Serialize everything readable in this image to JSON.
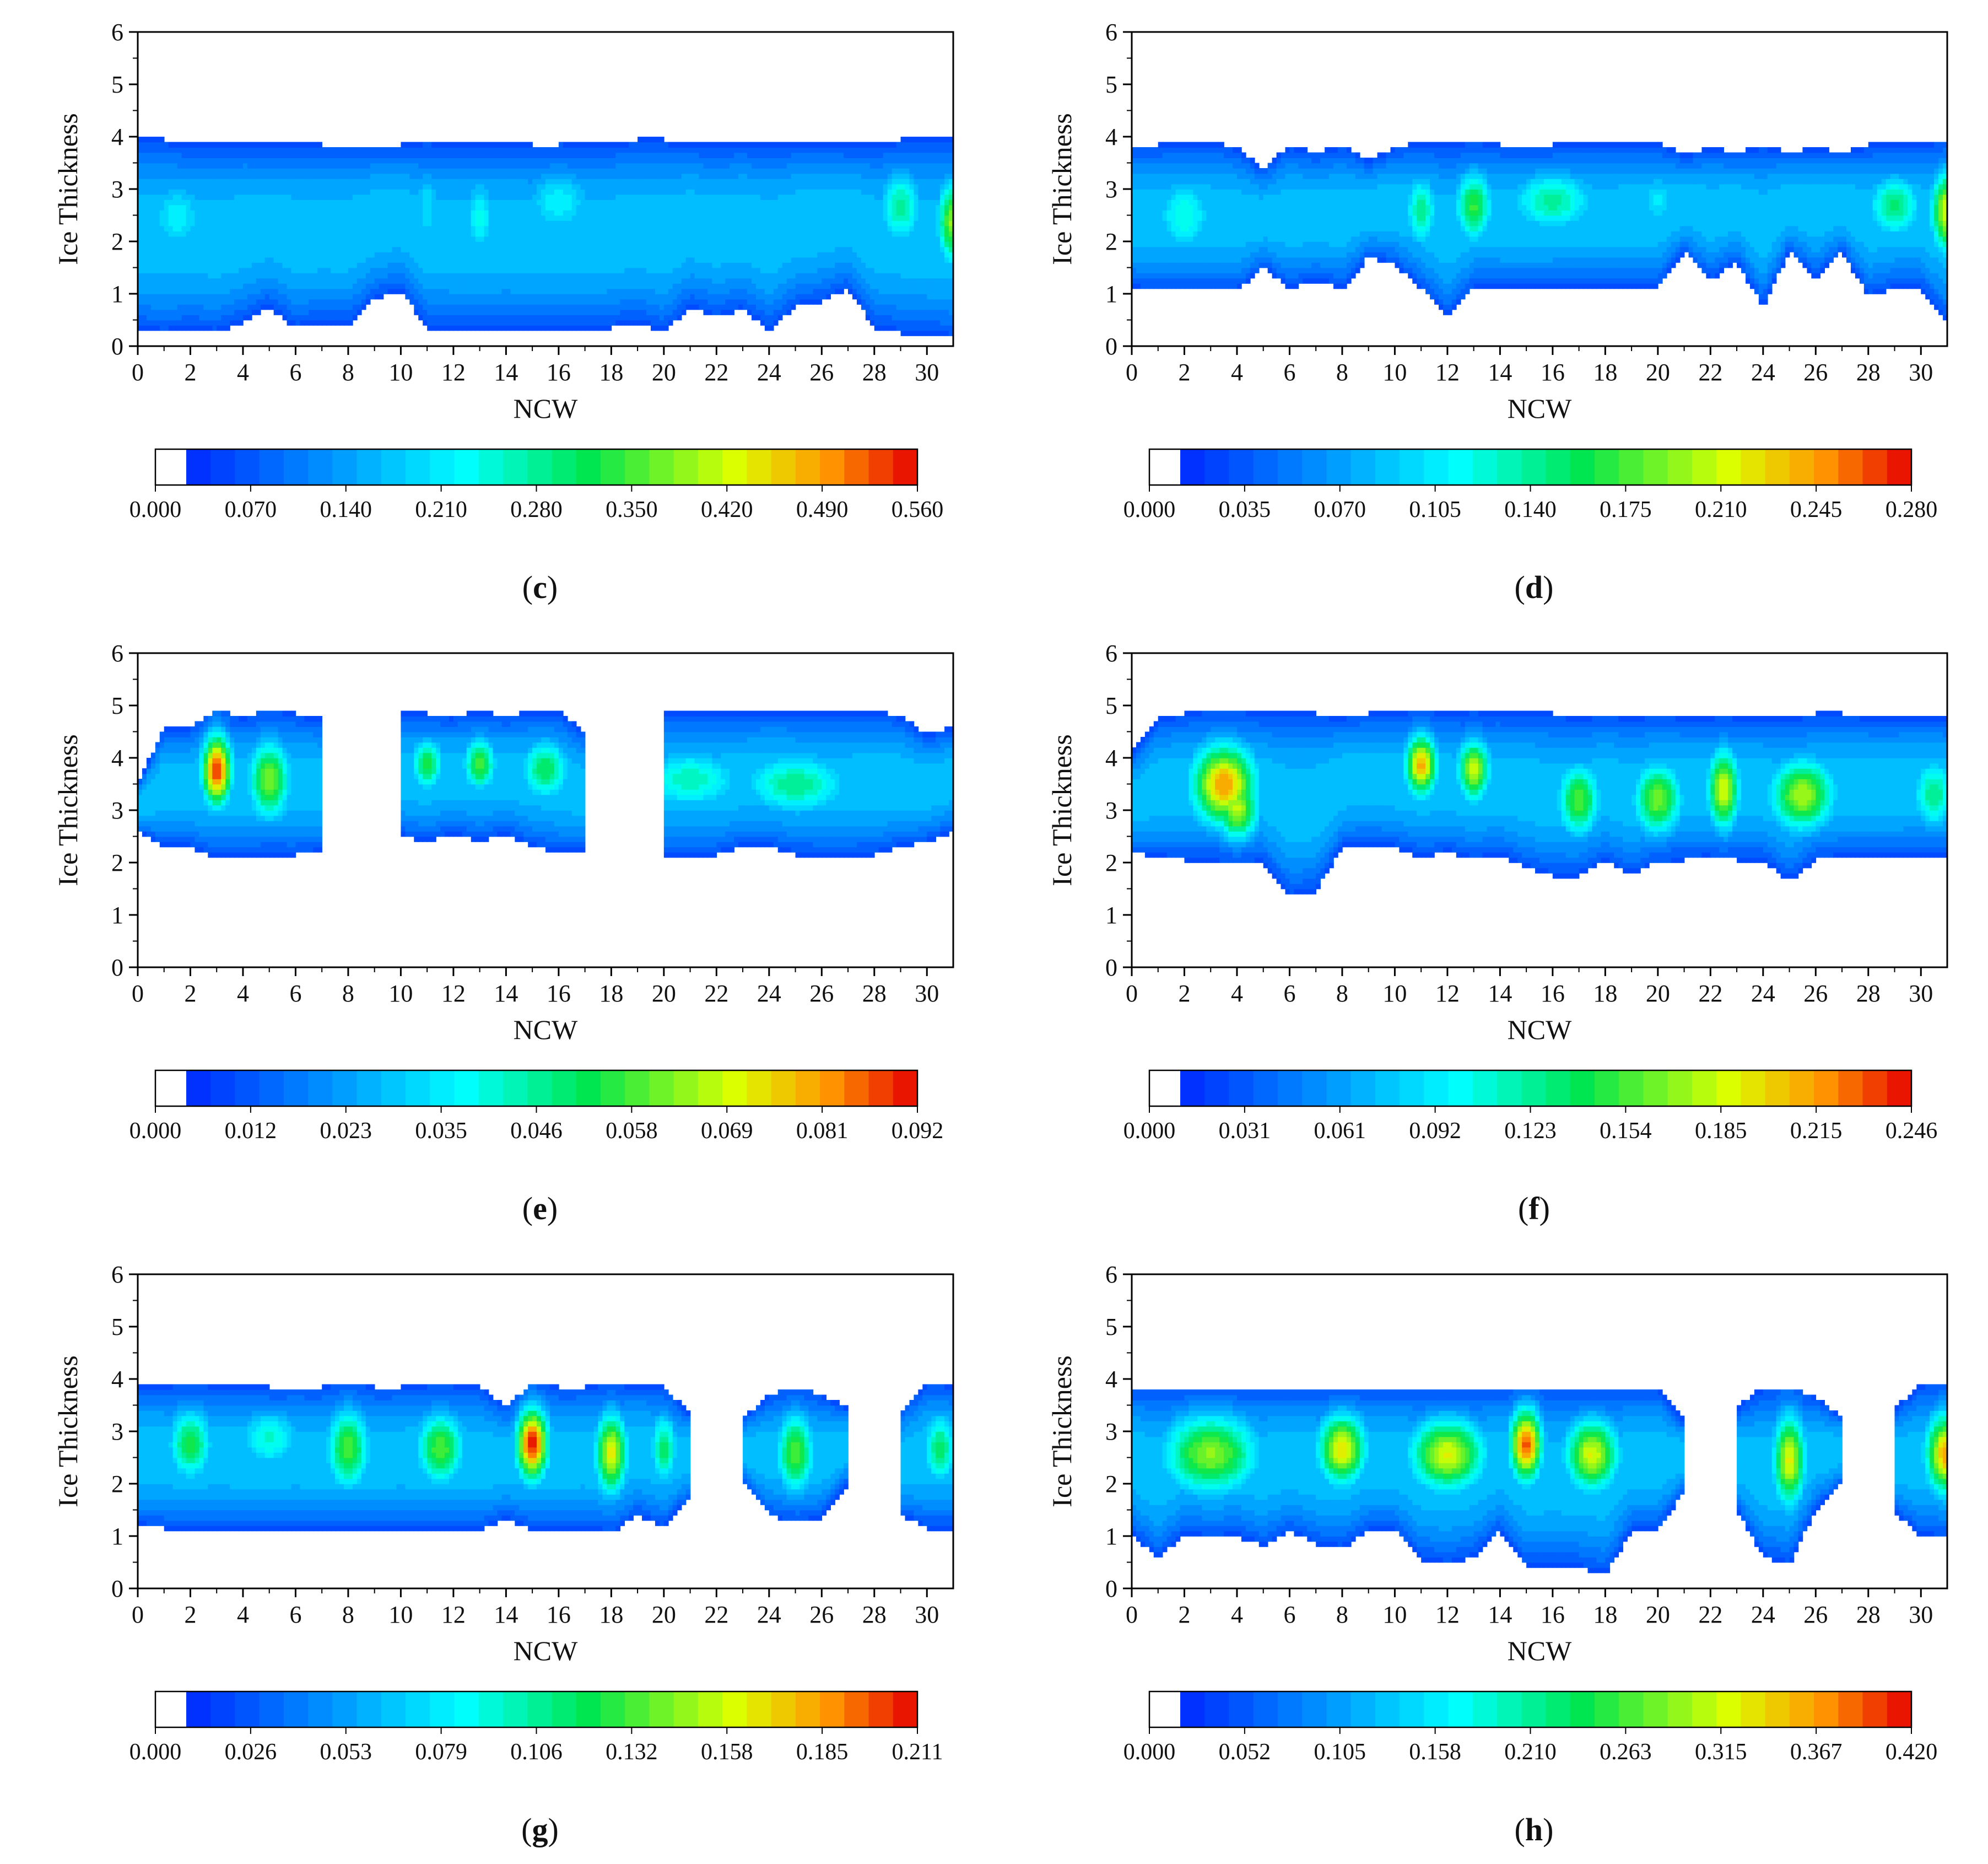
{
  "figure": {
    "panel_letters": [
      "c",
      "d",
      "e",
      "f",
      "g",
      "h"
    ]
  },
  "chart_data": [
    {
      "type": "heatmap",
      "panel": "c",
      "title": "",
      "xlabel": "NCW",
      "ylabel": "Ice Thickness",
      "xlim": [
        0,
        31
      ],
      "ylim": [
        0,
        6
      ],
      "xticks": [
        "0",
        "2",
        "4",
        "6",
        "8",
        "10",
        "12",
        "14",
        "16",
        "18",
        "20",
        "22",
        "24",
        "26",
        "28",
        "30"
      ],
      "yticks": [
        "0",
        "1",
        "2",
        "3",
        "4",
        "5",
        "6"
      ],
      "colorbar_labels": [
        "0.000",
        "0.070",
        "0.140",
        "0.210",
        "0.280",
        "0.350",
        "0.420",
        "0.490",
        "0.560"
      ],
      "vmax": 0.56,
      "band": {
        "lower": [
          0.3,
          0.25,
          0.3,
          0.25,
          0.45,
          0.75,
          0.35,
          0.45,
          0.4,
          0.9,
          1.05,
          0.35,
          0.35,
          0.3,
          0.35,
          0.3,
          0.3,
          0.3,
          0.35,
          0.45,
          0.25,
          0.75,
          0.55,
          0.7,
          0.3,
          0.75,
          0.85,
          1.1,
          0.35,
          0.25,
          0.2,
          0.15
        ],
        "upper": [
          3.95,
          3.95,
          3.9,
          3.9,
          3.9,
          3.85,
          3.9,
          3.85,
          3.85,
          3.85,
          3.85,
          3.9,
          3.85,
          3.9,
          3.9,
          3.85,
          3.85,
          3.9,
          3.9,
          3.95,
          3.95,
          3.9,
          3.85,
          3.9,
          3.85,
          3.9,
          3.9,
          3.85,
          3.9,
          3.95,
          3.95,
          3.95
        ]
      },
      "hotspots": [
        {
          "x": 1.5,
          "y": 2.5,
          "amp": 0.17,
          "sx": 1.2,
          "sy": 0.8
        },
        {
          "x": 6,
          "y": 2.5,
          "amp": 0.1,
          "sx": 0.5,
          "sy": 0.8
        },
        {
          "x": 11,
          "y": 2.7,
          "amp": 0.16,
          "sx": 0.5,
          "sy": 0.8
        },
        {
          "x": 13,
          "y": 2.5,
          "amp": 0.19,
          "sx": 0.6,
          "sy": 0.8
        },
        {
          "x": 16,
          "y": 2.8,
          "amp": 0.18,
          "sx": 1.4,
          "sy": 0.7
        },
        {
          "x": 20,
          "y": 2.6,
          "amp": 0.1,
          "sx": 0.8,
          "sy": 0.8
        },
        {
          "x": 22,
          "y": 2.8,
          "amp": 0.08,
          "sx": 0.5,
          "sy": 0.5
        },
        {
          "x": 24,
          "y": 2.6,
          "amp": 0.1,
          "sx": 0.6,
          "sy": 0.8
        },
        {
          "x": 26,
          "y": 2.8,
          "amp": 0.09,
          "sx": 0.5,
          "sy": 0.6
        },
        {
          "x": 29,
          "y": 2.7,
          "amp": 0.25,
          "sx": 0.8,
          "sy": 0.7
        },
        {
          "x": 31,
          "y": 2.4,
          "amp": 0.35,
          "sx": 0.6,
          "sy": 0.8
        }
      ]
    },
    {
      "type": "heatmap",
      "panel": "d",
      "title": "",
      "xlabel": "NCW",
      "ylabel": "Ice Thickness",
      "xlim": [
        0,
        31
      ],
      "ylim": [
        0,
        6
      ],
      "xticks": [
        "0",
        "2",
        "4",
        "6",
        "8",
        "10",
        "12",
        "14",
        "16",
        "18",
        "20",
        "22",
        "24",
        "26",
        "28",
        "30"
      ],
      "yticks": [
        "0",
        "1",
        "2",
        "3",
        "4",
        "5",
        "6"
      ],
      "colorbar_labels": [
        "0.000",
        "0.035",
        "0.070",
        "0.105",
        "0.140",
        "0.175",
        "0.210",
        "0.245",
        "0.280"
      ],
      "vmax": 0.28,
      "band": {
        "lower": [
          1.1,
          1.05,
          1.05,
          1.05,
          1.05,
          1.5,
          1.1,
          1.25,
          1.1,
          1.7,
          1.55,
          1.1,
          0.55,
          1.1,
          1.1,
          1.1,
          1.1,
          1.1,
          1.1,
          1.1,
          1.1,
          1.8,
          1.25,
          1.6,
          0.75,
          1.8,
          1.3,
          1.8,
          0.95,
          1.1,
          1.1,
          0.45
        ],
        "upper": [
          3.85,
          3.85,
          3.9,
          3.9,
          3.8,
          3.4,
          3.85,
          3.7,
          3.85,
          3.55,
          3.8,
          3.9,
          3.85,
          3.9,
          3.85,
          3.85,
          3.85,
          3.9,
          3.85,
          3.9,
          3.9,
          3.65,
          3.8,
          3.7,
          3.85,
          3.7,
          3.8,
          3.7,
          3.85,
          3.9,
          3.9,
          3.9
        ]
      },
      "hotspots": [
        {
          "x": 2,
          "y": 2.5,
          "amp": 0.1,
          "sx": 1.1,
          "sy": 0.8
        },
        {
          "x": 6,
          "y": 2.4,
          "amp": 0.04,
          "sx": 0.4,
          "sy": 0.8
        },
        {
          "x": 8,
          "y": 2.4,
          "amp": 0.04,
          "sx": 0.4,
          "sy": 0.8
        },
        {
          "x": 11,
          "y": 2.6,
          "amp": 0.12,
          "sx": 0.6,
          "sy": 0.7
        },
        {
          "x": 13,
          "y": 2.7,
          "amp": 0.15,
          "sx": 0.7,
          "sy": 0.7
        },
        {
          "x": 16,
          "y": 2.8,
          "amp": 0.12,
          "sx": 1.6,
          "sy": 0.6
        },
        {
          "x": 20,
          "y": 2.8,
          "amp": 0.08,
          "sx": 0.7,
          "sy": 0.6
        },
        {
          "x": 22,
          "y": 2.8,
          "amp": 0.03,
          "sx": 0.3,
          "sy": 0.6
        },
        {
          "x": 24,
          "y": 2.4,
          "amp": 0.03,
          "sx": 0.3,
          "sy": 0.8
        },
        {
          "x": 26,
          "y": 2.8,
          "amp": 0.04,
          "sx": 0.4,
          "sy": 0.5
        },
        {
          "x": 29,
          "y": 2.7,
          "amp": 0.13,
          "sx": 1.0,
          "sy": 0.6
        },
        {
          "x": 31,
          "y": 2.6,
          "amp": 0.2,
          "sx": 0.6,
          "sy": 0.8
        }
      ]
    },
    {
      "type": "heatmap",
      "panel": "e",
      "title": "",
      "xlabel": "NCW",
      "ylabel": "Ice Thickness",
      "xlim": [
        0,
        31
      ],
      "ylim": [
        0,
        6
      ],
      "xticks": [
        "0",
        "2",
        "4",
        "6",
        "8",
        "10",
        "12",
        "14",
        "16",
        "18",
        "20",
        "22",
        "24",
        "26",
        "28",
        "30"
      ],
      "yticks": [
        "0",
        "1",
        "2",
        "3",
        "4",
        "5",
        "6"
      ],
      "colorbar_labels": [
        "0.000",
        "0.012",
        "0.023",
        "0.035",
        "0.046",
        "0.058",
        "0.069",
        "0.081",
        "0.092"
      ],
      "vmax": 0.092,
      "band": {
        "lower": [
          2.6,
          2.3,
          2.3,
          2.1,
          2.15,
          2.15,
          2.15,
          2.2,
          null,
          null,
          2.5,
          2.4,
          2.55,
          2.4,
          2.55,
          2.3,
          2.2,
          2.2,
          null,
          null,
          2.15,
          2.15,
          2.15,
          2.3,
          2.3,
          2.15,
          2.15,
          2.15,
          2.15,
          2.3,
          2.4,
          2.6
        ],
        "upper": [
          3.5,
          4.6,
          4.6,
          4.9,
          4.8,
          4.9,
          4.85,
          4.75,
          null,
          null,
          4.85,
          4.85,
          4.8,
          4.9,
          4.8,
          4.9,
          4.9,
          4.5,
          null,
          null,
          4.85,
          4.85,
          4.85,
          4.85,
          4.9,
          4.9,
          4.85,
          4.85,
          4.9,
          4.8,
          4.45,
          4.6
        ]
      },
      "hotspots": [
        {
          "x": 3,
          "y": 3.8,
          "amp": 0.085,
          "sx": 0.55,
          "sy": 0.7
        },
        {
          "x": 5,
          "y": 3.6,
          "amp": 0.055,
          "sx": 0.8,
          "sy": 0.8
        },
        {
          "x": 11,
          "y": 3.9,
          "amp": 0.048,
          "sx": 0.6,
          "sy": 0.5
        },
        {
          "x": 13,
          "y": 3.9,
          "amp": 0.052,
          "sx": 0.6,
          "sy": 0.5
        },
        {
          "x": 15.5,
          "y": 3.8,
          "amp": 0.045,
          "sx": 0.9,
          "sy": 0.6
        },
        {
          "x": 21,
          "y": 3.6,
          "amp": 0.036,
          "sx": 2.0,
          "sy": 0.6
        },
        {
          "x": 25,
          "y": 3.5,
          "amp": 0.04,
          "sx": 2.0,
          "sy": 0.6
        }
      ]
    },
    {
      "type": "heatmap",
      "panel": "f",
      "title": "",
      "xlabel": "NCW",
      "ylabel": "Ice Thickness",
      "xlim": [
        0,
        31
      ],
      "ylim": [
        0,
        6
      ],
      "xticks": [
        "0",
        "2",
        "4",
        "6",
        "8",
        "10",
        "12",
        "14",
        "16",
        "18",
        "20",
        "22",
        "24",
        "26",
        "28",
        "30"
      ],
      "yticks": [
        "0",
        "1",
        "2",
        "3",
        "4",
        "5",
        "6"
      ],
      "colorbar_labels": [
        "0.000",
        "0.031",
        "0.061",
        "0.092",
        "0.123",
        "0.154",
        "0.185",
        "0.215",
        "0.246"
      ],
      "vmax": 0.246,
      "band": {
        "lower": [
          2.2,
          2.1,
          2.05,
          2.05,
          2.05,
          2.0,
          1.35,
          1.45,
          2.3,
          2.35,
          2.3,
          2.1,
          2.2,
          2.05,
          2.15,
          1.9,
          1.75,
          1.75,
          2.05,
          1.75,
          2.05,
          2.05,
          2.1,
          2.05,
          2.05,
          1.65,
          2.05,
          2.1,
          2.1,
          2.1,
          2.15,
          2.1
        ],
        "upper": [
          4.1,
          4.75,
          4.85,
          4.9,
          4.9,
          4.85,
          4.85,
          4.85,
          4.8,
          4.85,
          4.85,
          4.9,
          4.85,
          4.85,
          4.85,
          4.85,
          4.85,
          4.8,
          4.85,
          4.8,
          4.85,
          4.8,
          4.8,
          4.8,
          4.8,
          4.8,
          4.85,
          4.85,
          4.8,
          4.8,
          4.8,
          4.8
        ]
      },
      "hotspots": [
        {
          "x": 3.5,
          "y": 3.5,
          "amp": 0.2,
          "sx": 1.2,
          "sy": 0.8
        },
        {
          "x": 4,
          "y": 3.0,
          "amp": 0.17,
          "sx": 0.8,
          "sy": 0.6
        },
        {
          "x": 11,
          "y": 3.9,
          "amp": 0.2,
          "sx": 0.6,
          "sy": 0.6
        },
        {
          "x": 13,
          "y": 3.8,
          "amp": 0.17,
          "sx": 0.6,
          "sy": 0.6
        },
        {
          "x": 17,
          "y": 3.2,
          "amp": 0.14,
          "sx": 0.8,
          "sy": 0.7
        },
        {
          "x": 20,
          "y": 3.2,
          "amp": 0.15,
          "sx": 0.9,
          "sy": 0.7
        },
        {
          "x": 22.5,
          "y": 3.4,
          "amp": 0.17,
          "sx": 0.6,
          "sy": 0.8
        },
        {
          "x": 25.5,
          "y": 3.3,
          "amp": 0.16,
          "sx": 1.2,
          "sy": 0.7
        },
        {
          "x": 30.5,
          "y": 3.3,
          "amp": 0.11,
          "sx": 0.8,
          "sy": 0.7
        }
      ]
    },
    {
      "type": "heatmap",
      "panel": "g",
      "title": "",
      "xlabel": "NCW",
      "ylabel": "Ice Thickness",
      "xlim": [
        0,
        31
      ],
      "ylim": [
        0,
        6
      ],
      "xticks": [
        "0",
        "2",
        "4",
        "6",
        "8",
        "10",
        "12",
        "14",
        "16",
        "18",
        "20",
        "22",
        "24",
        "26",
        "28",
        "30"
      ],
      "yticks": [
        "0",
        "1",
        "2",
        "3",
        "4",
        "5",
        "6"
      ],
      "colorbar_labels": [
        "0.000",
        "0.026",
        "0.053",
        "0.079",
        "0.106",
        "0.132",
        "0.158",
        "0.185",
        "0.211"
      ],
      "vmax": 0.211,
      "band": {
        "lower": [
          1.2,
          1.15,
          1.1,
          1.15,
          1.1,
          1.1,
          1.15,
          1.1,
          1.1,
          1.1,
          1.15,
          1.1,
          1.1,
          1.1,
          1.35,
          1.1,
          1.1,
          1.15,
          1.05,
          1.4,
          1.15,
          1.75,
          null,
          2.05,
          1.4,
          1.25,
          1.35,
          2.0,
          null,
          1.4,
          1.15,
          1.15
        ],
        "upper": [
          3.9,
          3.9,
          3.85,
          3.9,
          3.9,
          3.85,
          3.85,
          3.85,
          3.9,
          3.85,
          3.85,
          3.9,
          3.9,
          3.85,
          3.5,
          3.9,
          3.85,
          3.85,
          3.9,
          3.9,
          3.85,
          3.35,
          null,
          3.25,
          3.7,
          3.85,
          3.7,
          3.45,
          null,
          3.4,
          3.95,
          3.9
        ]
      },
      "hotspots": [
        {
          "x": 2,
          "y": 2.8,
          "amp": 0.11,
          "sx": 0.8,
          "sy": 0.7
        },
        {
          "x": 5,
          "y": 2.9,
          "amp": 0.08,
          "sx": 1.2,
          "sy": 0.6
        },
        {
          "x": 8,
          "y": 2.7,
          "amp": 0.12,
          "sx": 0.8,
          "sy": 0.8
        },
        {
          "x": 11.5,
          "y": 2.7,
          "amp": 0.12,
          "sx": 0.9,
          "sy": 0.7
        },
        {
          "x": 15,
          "y": 2.8,
          "amp": 0.2,
          "sx": 0.6,
          "sy": 0.7
        },
        {
          "x": 18,
          "y": 2.6,
          "amp": 0.15,
          "sx": 0.6,
          "sy": 0.8
        },
        {
          "x": 20,
          "y": 2.7,
          "amp": 0.1,
          "sx": 0.5,
          "sy": 0.7
        },
        {
          "x": 25,
          "y": 2.6,
          "amp": 0.12,
          "sx": 0.7,
          "sy": 0.8
        },
        {
          "x": 30.5,
          "y": 2.7,
          "amp": 0.1,
          "sx": 0.6,
          "sy": 0.7
        }
      ]
    },
    {
      "type": "heatmap",
      "panel": "h",
      "title": "",
      "xlabel": "NCW",
      "ylabel": "Ice Thickness",
      "xlim": [
        0,
        31
      ],
      "ylim": [
        0,
        6
      ],
      "xticks": [
        "0",
        "2",
        "4",
        "6",
        "8",
        "10",
        "12",
        "14",
        "16",
        "18",
        "20",
        "22",
        "24",
        "26",
        "28",
        "30"
      ],
      "yticks": [
        "0",
        "1",
        "2",
        "3",
        "4",
        "5",
        "6"
      ],
      "colorbar_labels": [
        "0.000",
        "0.052",
        "0.105",
        "0.158",
        "0.210",
        "0.263",
        "0.315",
        "0.367",
        "0.420"
      ],
      "vmax": 0.42,
      "band": {
        "lower": [
          1.05,
          0.55,
          1.05,
          0.95,
          1.0,
          0.8,
          1.1,
          0.85,
          0.75,
          1.1,
          1.1,
          0.55,
          0.45,
          0.6,
          1.1,
          0.4,
          0.45,
          0.4,
          0.25,
          1.1,
          1.1,
          1.85,
          null,
          1.5,
          0.6,
          0.45,
          1.5,
          2.0,
          null,
          1.45,
          1.0,
          0.95
        ],
        "upper": [
          3.85,
          3.85,
          3.85,
          3.85,
          3.85,
          3.85,
          3.85,
          3.85,
          3.85,
          3.85,
          3.85,
          3.85,
          3.85,
          3.85,
          3.85,
          3.85,
          3.85,
          3.85,
          3.85,
          3.85,
          3.85,
          3.2,
          null,
          3.45,
          3.85,
          3.85,
          3.65,
          3.3,
          null,
          3.45,
          3.9,
          3.9
        ]
      },
      "hotspots": [
        {
          "x": 3,
          "y": 2.6,
          "amp": 0.26,
          "sx": 1.8,
          "sy": 0.8
        },
        {
          "x": 8,
          "y": 2.7,
          "amp": 0.31,
          "sx": 0.9,
          "sy": 0.7
        },
        {
          "x": 12,
          "y": 2.6,
          "amp": 0.3,
          "sx": 1.4,
          "sy": 0.7
        },
        {
          "x": 15,
          "y": 2.8,
          "amp": 0.39,
          "sx": 0.6,
          "sy": 0.7
        },
        {
          "x": 17.5,
          "y": 2.6,
          "amp": 0.3,
          "sx": 1.0,
          "sy": 0.7
        },
        {
          "x": 25,
          "y": 2.5,
          "amp": 0.3,
          "sx": 0.6,
          "sy": 0.9
        },
        {
          "x": 31,
          "y": 2.6,
          "amp": 0.34,
          "sx": 0.8,
          "sy": 0.8
        }
      ]
    }
  ]
}
